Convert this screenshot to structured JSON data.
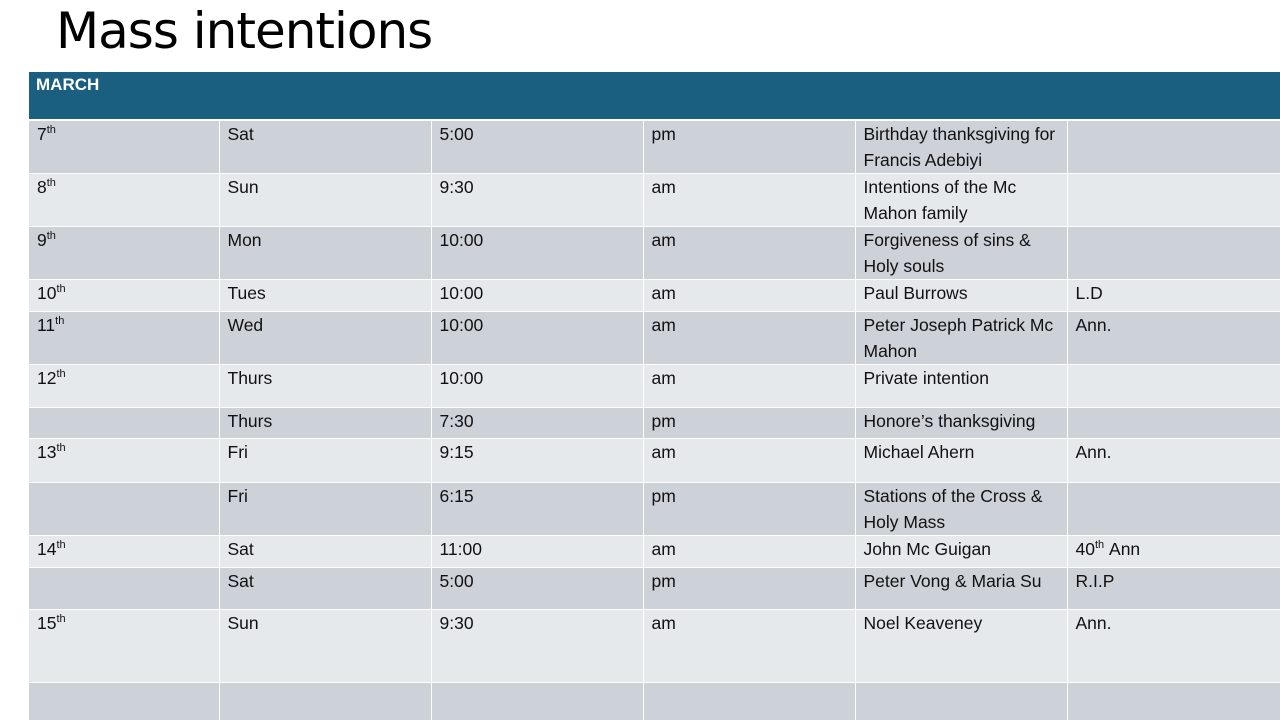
{
  "title": "Mass intentions",
  "table": {
    "header": "MARCH",
    "rows": [
      [
        {
          "text": "7",
          "sup": "th"
        },
        "Sat",
        "5:00",
        "pm",
        "Birthday thanksgiving for Francis Adebiyi",
        null
      ],
      [
        {
          "text": "8",
          "sup": "th"
        },
        "Sun",
        "9:30",
        "am",
        "Intentions of the Mc Mahon family",
        null
      ],
      [
        {
          "text": "9",
          "sup": "th"
        },
        "Mon",
        "10:00",
        "am",
        "Forgiveness of sins & Holy souls",
        null
      ],
      [
        {
          "text": "10",
          "sup": "th"
        },
        "Tues",
        "10:00",
        "am",
        "Paul Burrows",
        "L.D"
      ],
      [
        {
          "text": "11",
          "sup": "th"
        },
        "Wed",
        "10:00",
        "am",
        "Peter Joseph Patrick Mc Mahon",
        "Ann."
      ],
      [
        {
          "text": "12",
          "sup": "th"
        },
        "Thurs",
        "10:00",
        "am",
        "Private intention",
        null
      ],
      [
        null,
        "Thurs",
        "7:30",
        "pm",
        "Honore’s thanksgiving",
        null
      ],
      [
        {
          "text": "13",
          "sup": "th"
        },
        "Fri",
        "9:15",
        "am",
        "Michael Ahern",
        "Ann."
      ],
      [
        null,
        "Fri",
        "6:15",
        "pm",
        "Stations of the Cross & Holy Mass",
        null
      ],
      [
        {
          "text": "14",
          "sup": "th"
        },
        "Sat",
        "11:00",
        "am",
        "John Mc Guigan",
        {
          "text": "40",
          "sup": "th",
          "after": "Ann"
        }
      ],
      [
        null,
        "Sat",
        "5:00",
        "pm",
        "Peter Vong & Maria Su",
        "R.I.P"
      ],
      [
        {
          "text": "15",
          "sup": "th"
        },
        "Sun",
        "9:30",
        "am",
        "Noel Keaveney",
        "Ann."
      ],
      [
        null,
        null,
        null,
        null,
        null,
        null
      ]
    ]
  }
}
